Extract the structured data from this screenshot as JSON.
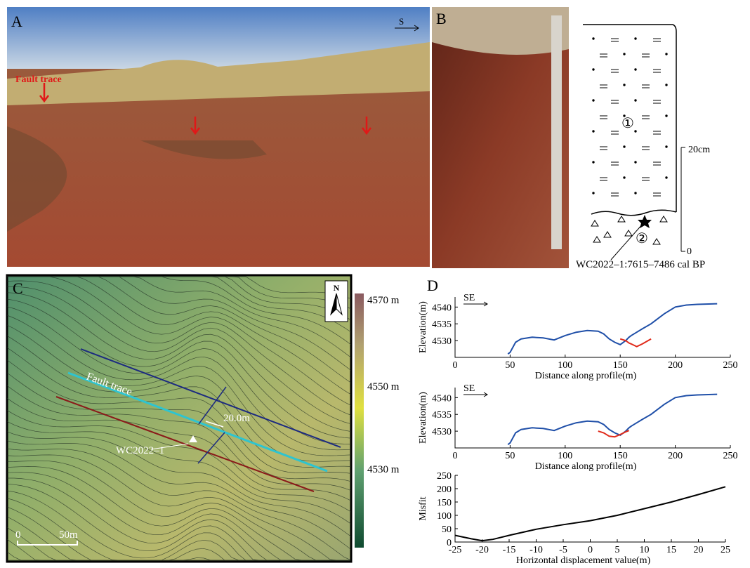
{
  "panels": {
    "a": {
      "label": "A",
      "direction": "S",
      "annotation": "Fault trace"
    },
    "b": {
      "label": "B",
      "unit_1": "①",
      "unit_2": "②",
      "scale_top": "20cm",
      "scale_bottom": "0",
      "sample": "WC2022–1:7615–7486 cal BP"
    },
    "c": {
      "label": "C",
      "north": "N",
      "elevation_max": "4570 m",
      "elevation_mid": "4550 m",
      "elevation_min": "4530 m",
      "fault": "Fault trace",
      "offset": "20.0m",
      "sample": "WC2022–1",
      "scale_start": "0",
      "scale_end": "50m"
    },
    "d": {
      "label": "D"
    }
  },
  "chart_data": [
    {
      "type": "line",
      "annotation": "SE",
      "x_label": "Distance along profile(m)",
      "y_label": "Elevation(m)",
      "x": [
        48,
        50,
        55,
        60,
        70,
        80,
        90,
        100,
        110,
        120,
        130,
        135,
        140,
        145,
        150,
        155,
        158,
        160,
        165,
        170,
        178,
        180,
        190,
        200,
        210,
        220,
        238
      ],
      "series": [
        {
          "color": "#1f4fa8",
          "values": [
            4526,
            4526.5,
            4529.5,
            4530.5,
            4531,
            4530.8,
            4530.2,
            4531.5,
            4532.5,
            4533,
            4532.8,
            4532,
            4530.5,
            4529.5,
            4528.8,
            4530,
            4531,
            4531.5,
            4532.5,
            4533.5,
            4535,
            4535.5,
            4538,
            4540,
            4540.6,
            4540.8,
            4541
          ]
        },
        {
          "color": "#e02a1a",
          "values": [
            null,
            null,
            null,
            null,
            null,
            null,
            null,
            null,
            null,
            null,
            null,
            null,
            null,
            null,
            4530.5,
            4530,
            4529.3,
            4529,
            4528.2,
            4529,
            4530.5,
            null,
            null,
            null,
            null,
            null,
            null
          ]
        }
      ],
      "xlim": [
        0,
        250
      ],
      "ylim": [
        4525,
        4543
      ],
      "xticks": [
        0,
        50,
        100,
        150,
        200,
        250
      ],
      "yticks": [
        4530,
        4535,
        4540
      ]
    },
    {
      "type": "line",
      "annotation": "SE",
      "x_label": "Distance along profile(m)",
      "y_label": "Elevation(m)",
      "x": [
        48,
        50,
        55,
        60,
        70,
        80,
        90,
        100,
        110,
        120,
        130,
        135,
        140,
        145,
        150,
        155,
        158,
        160,
        165,
        170,
        178,
        180,
        190,
        200,
        210,
        220,
        238
      ],
      "series": [
        {
          "color": "#1f4fa8",
          "values": [
            4526,
            4526.5,
            4529.5,
            4530.5,
            4531,
            4530.8,
            4530.2,
            4531.5,
            4532.5,
            4533,
            4532.8,
            4532,
            4530.5,
            4529.5,
            4528.8,
            4530,
            4531,
            4531.5,
            4532.5,
            4533.5,
            4535,
            4535.5,
            4538,
            4540,
            4540.6,
            4540.8,
            4541
          ]
        },
        {
          "color": "#e02a1a",
          "values": [
            null,
            null,
            null,
            null,
            null,
            null,
            null,
            null,
            null,
            null,
            4530,
            4529.5,
            4528.5,
            4528.3,
            4529,
            4529.8,
            4530.2,
            null,
            null,
            null,
            null,
            null,
            null,
            null,
            null,
            null,
            null
          ]
        }
      ],
      "xlim": [
        0,
        250
      ],
      "ylim": [
        4525,
        4543
      ],
      "xticks": [
        0,
        50,
        100,
        150,
        200,
        250
      ],
      "yticks": [
        4530,
        4535,
        4540
      ]
    },
    {
      "type": "line",
      "x_label": "Horizontal displacement value(m)",
      "y_label": "Misfit",
      "x": [
        -25,
        -22,
        -20,
        -18,
        -15,
        -10,
        -5,
        0,
        5,
        10,
        15,
        20,
        25
      ],
      "series": [
        {
          "color": "#000000",
          "values": [
            25,
            12,
            5,
            10,
            25,
            48,
            65,
            80,
            100,
            125,
            150,
            178,
            207
          ]
        }
      ],
      "xlim": [
        -25,
        25
      ],
      "ylim": [
        0,
        250
      ],
      "xticks": [
        -25,
        -20,
        -15,
        -10,
        -5,
        0,
        5,
        10,
        15,
        20,
        25
      ],
      "yticks": [
        0,
        50,
        100,
        150,
        200,
        250
      ]
    }
  ]
}
